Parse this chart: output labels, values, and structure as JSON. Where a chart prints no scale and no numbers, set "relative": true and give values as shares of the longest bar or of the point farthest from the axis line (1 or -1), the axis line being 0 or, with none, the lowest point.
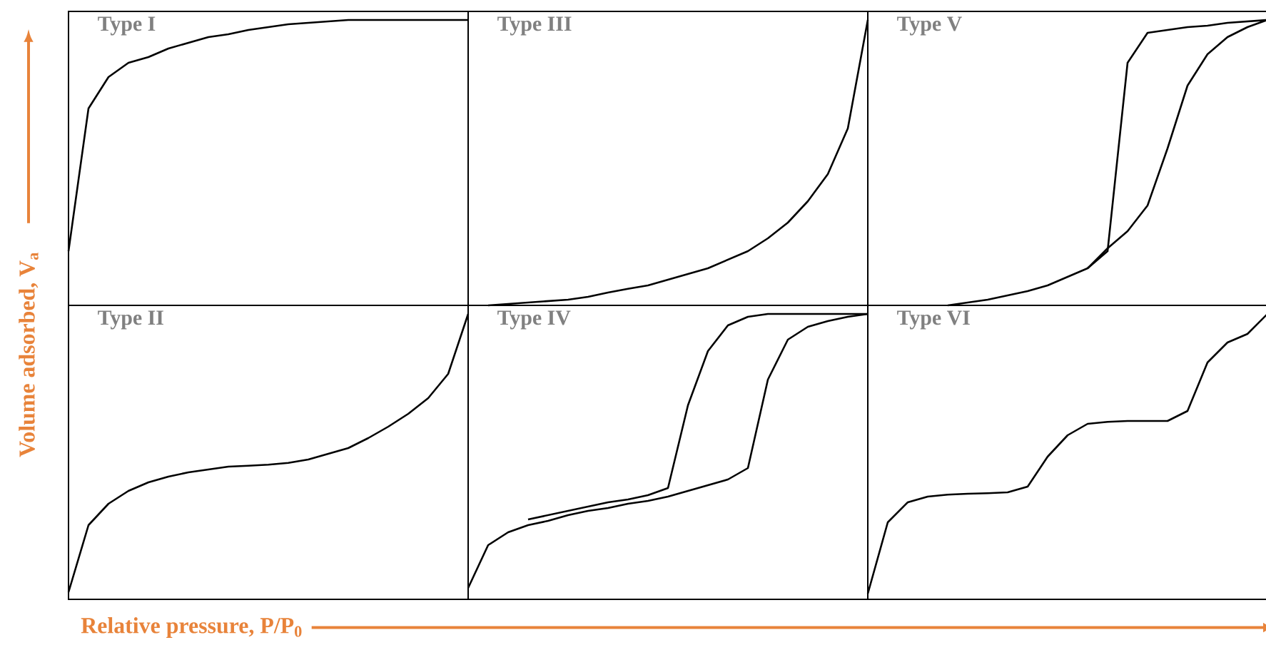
{
  "chart_data": [
    {
      "type": "line",
      "title": "Type I",
      "ylabel": "Volume adsorbed, V$_{a}$",
      "relative": true,
      "categories": [
        null,
        null,
        null,
        null,
        null,
        null,
        null,
        null,
        null,
        null,
        null,
        null,
        null,
        null,
        null,
        null,
        null,
        null,
        null,
        null,
        null
      ],
      "series": [
        {
          "color": "#000000",
          "values": [
            0.19,
            0.69,
            0.8,
            0.85,
            0.87,
            0.9,
            0.92,
            0.94,
            0.95,
            0.965,
            0.975,
            0.985,
            0.99,
            0.995,
            1,
            1,
            1,
            1,
            1,
            1,
            1
          ]
        }
      ]
    },
    {
      "type": "line",
      "title": "Type III",
      "relative": true,
      "categories": [
        null,
        null,
        null,
        null,
        null,
        null,
        null,
        null,
        null,
        null,
        null,
        null,
        null,
        null,
        null,
        null,
        null,
        null,
        null,
        null,
        null
      ],
      "series": [
        {
          "color": "#000000",
          "values": [
            null,
            0,
            0.005,
            0.01,
            0.015,
            0.02,
            0.03,
            0.045,
            0.058,
            0.07,
            0.09,
            0.11,
            0.13,
            0.16,
            0.19,
            0.235,
            0.29,
            0.365,
            0.46,
            0.62,
            1
          ]
        }
      ]
    },
    {
      "type": "line",
      "title": "Type V",
      "relative": true,
      "categories": [
        null,
        null,
        null,
        null,
        null,
        null,
        null,
        null,
        null,
        null,
        null,
        null,
        null,
        null,
        null,
        null,
        null,
        null,
        null,
        null,
        null
      ],
      "series": [
        {
          "color": "#000000",
          "values": [
            null,
            null,
            null,
            null,
            0,
            0.01,
            0.02,
            0.035,
            0.05,
            0.07,
            0.1,
            0.13,
            0.2,
            0.26,
            0.35,
            0.55,
            0.77,
            0.88,
            0.94,
            0.975,
            1
          ]
        },
        {
          "color": "#000000",
          "values": [
            null,
            null,
            null,
            null,
            null,
            null,
            null,
            null,
            null,
            null,
            null,
            0.13,
            0.19,
            0.85,
            0.955,
            0.965,
            0.975,
            0.98,
            0.99,
            0.995,
            1
          ]
        }
      ]
    },
    {
      "type": "line",
      "title": "Type II",
      "xlabel": "Relative pressure, P/P$_{0}$",
      "relative": true,
      "categories": [
        null,
        null,
        null,
        null,
        null,
        null,
        null,
        null,
        null,
        null,
        null,
        null,
        null,
        null,
        null,
        null,
        null,
        null,
        null,
        null,
        null
      ],
      "series": [
        {
          "color": "#000000",
          "values": [
            0.025,
            0.26,
            0.335,
            0.38,
            0.41,
            0.43,
            0.445,
            0.455,
            0.465,
            0.468,
            0.472,
            0.478,
            0.49,
            0.51,
            0.53,
            0.565,
            0.605,
            0.65,
            0.705,
            0.79,
            1
          ]
        }
      ]
    },
    {
      "type": "line",
      "title": "Type IV",
      "relative": true,
      "categories": [
        null,
        null,
        null,
        null,
        null,
        null,
        null,
        null,
        null,
        null,
        null,
        null,
        null,
        null,
        null,
        null,
        null,
        null,
        null,
        null,
        null
      ],
      "series": [
        {
          "color": "#000000",
          "values": [
            0.04,
            0.19,
            0.235,
            0.26,
            0.275,
            0.295,
            0.31,
            0.32,
            0.335,
            0.345,
            0.36,
            0.38,
            0.4,
            0.42,
            0.46,
            0.77,
            0.91,
            0.955,
            0.975,
            0.99,
            1
          ]
        },
        {
          "color": "#000000",
          "values": [
            null,
            null,
            null,
            0.28,
            0.295,
            0.31,
            0.325,
            0.34,
            0.35,
            0.365,
            0.39,
            0.68,
            0.87,
            0.96,
            0.99,
            1,
            1,
            1,
            1,
            1,
            1
          ]
        }
      ]
    },
    {
      "type": "line",
      "title": "Type VI",
      "relative": true,
      "categories": [
        null,
        null,
        null,
        null,
        null,
        null,
        null,
        null,
        null,
        null,
        null,
        null,
        null,
        null,
        null,
        null,
        null,
        null,
        null,
        null,
        null
      ],
      "series": [
        {
          "color": "#000000",
          "values": [
            0.02,
            0.27,
            0.34,
            0.36,
            0.367,
            0.37,
            0.372,
            0.375,
            0.395,
            0.5,
            0.575,
            0.615,
            0.622,
            0.625,
            0.625,
            0.625,
            0.66,
            0.83,
            0.9,
            0.93,
            1
          ]
        }
      ]
    }
  ]
}
